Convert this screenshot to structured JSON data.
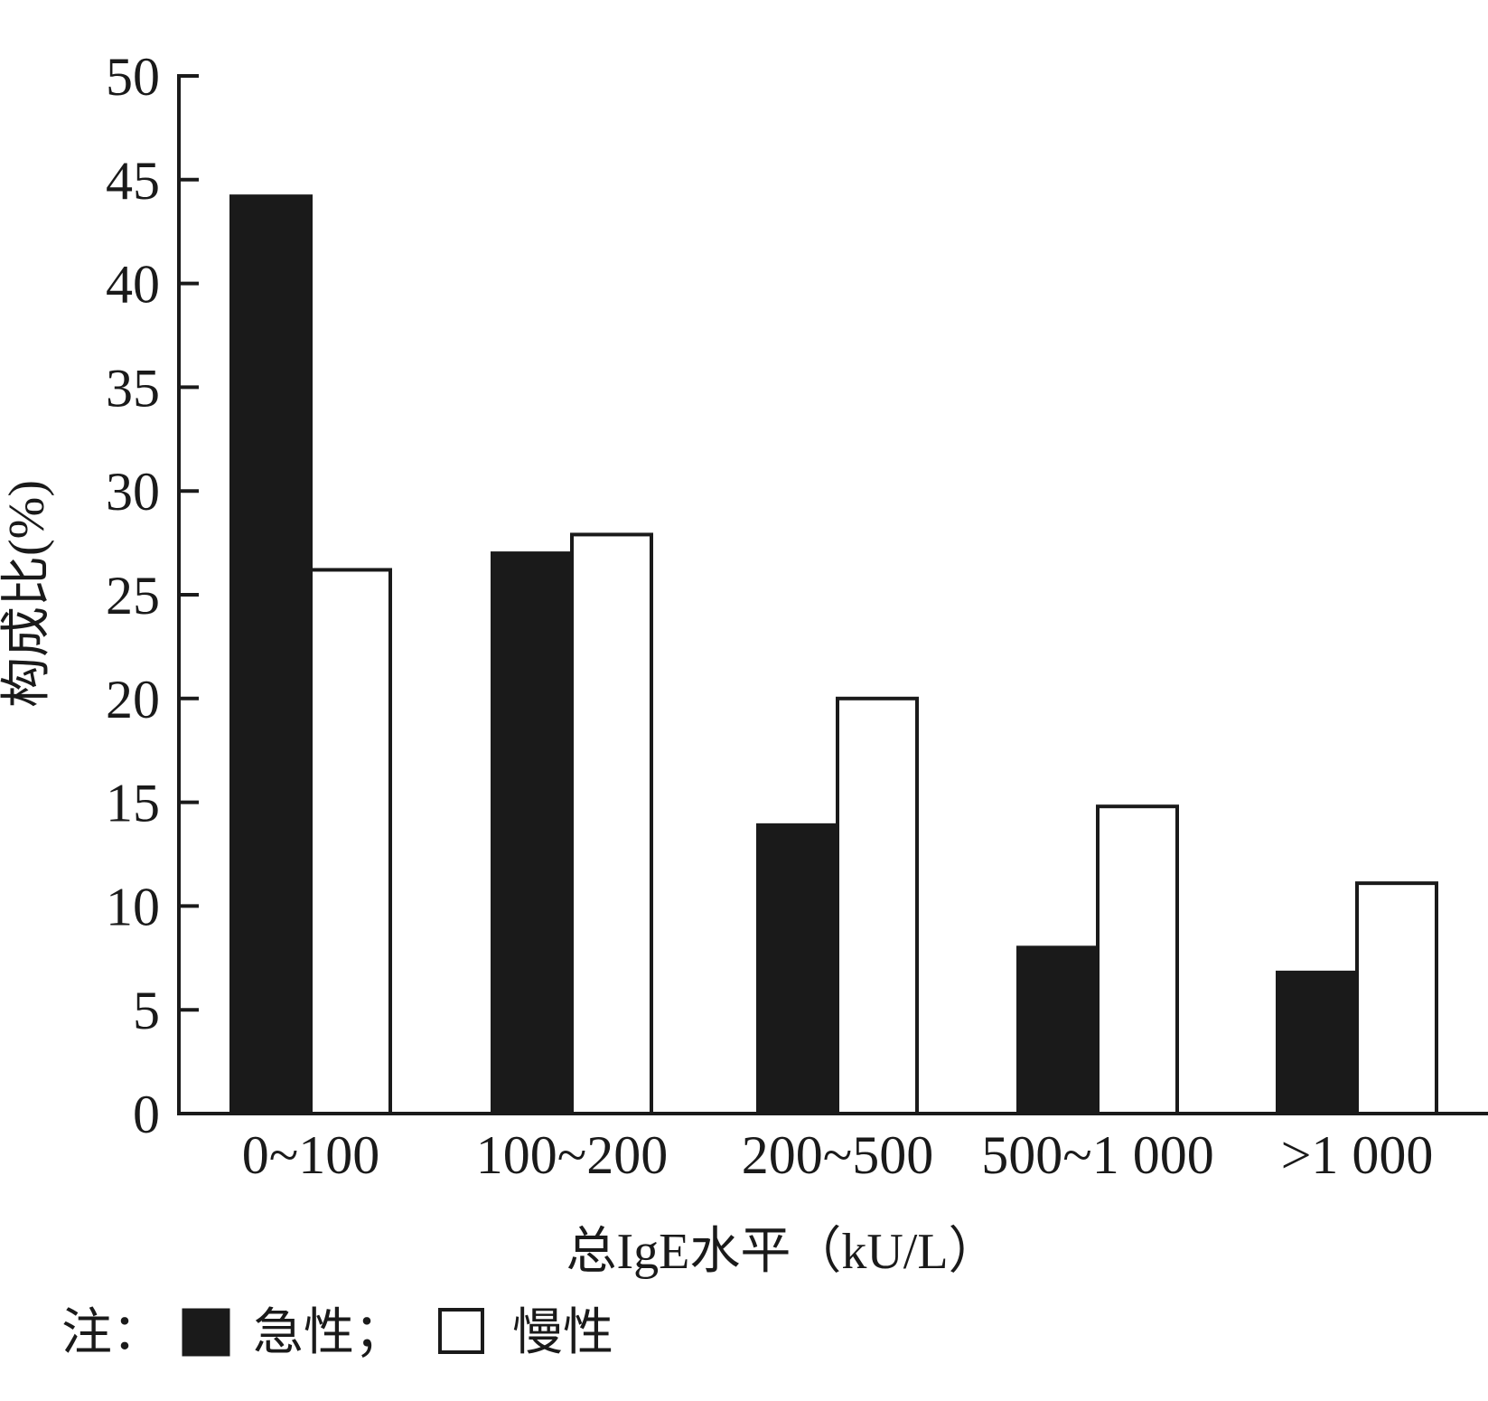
{
  "chart_data": {
    "type": "bar",
    "xlabel": "总IgE水平（kU/L）",
    "ylabel": "构成比(%)",
    "ylim": [
      0,
      50
    ],
    "yticks": [
      "0",
      "5",
      "10",
      "15",
      "20",
      "25",
      "30",
      "35",
      "40",
      "45",
      "50"
    ],
    "categories": [
      "0~100",
      "100~200",
      "200~500",
      "500~1 000",
      ">1 000"
    ],
    "series": [
      {
        "name": "急性",
        "values": [
          44.2,
          27.0,
          13.9,
          8.0,
          6.8
        ],
        "fill": "#1a1a1a"
      },
      {
        "name": "慢性",
        "values": [
          26.2,
          27.9,
          20.0,
          14.8,
          11.1
        ],
        "fill": "#ffffff"
      }
    ],
    "legend": {
      "prefix": "注：",
      "items": [
        "急性；",
        "慢性"
      ]
    },
    "colors": {
      "ink": "#1a1a1a",
      "background": "#ffffff"
    }
  }
}
